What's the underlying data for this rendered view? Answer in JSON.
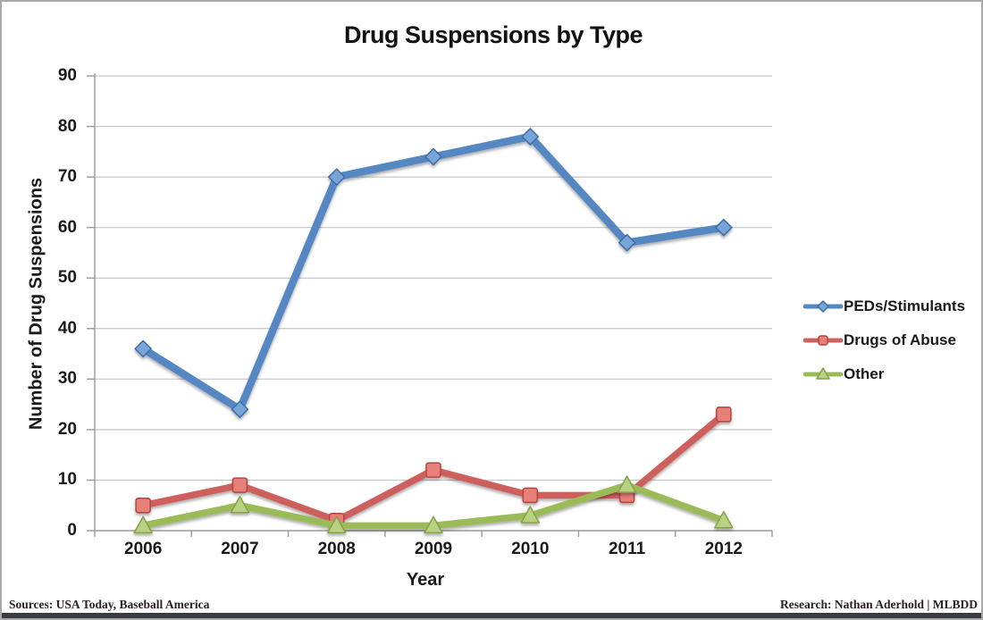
{
  "footer": {
    "left": "Sources: USA Today, Baseball America",
    "right": "Research: Nathan Aderhold | MLBDD"
  },
  "chart_data": {
    "type": "line",
    "title": "Drug Suspensions by Type",
    "xlabel": "Year",
    "ylabel": "Number of Drug Suspensions",
    "categories": [
      "2006",
      "2007",
      "2008",
      "2009",
      "2010",
      "2011",
      "2012"
    ],
    "ylim": [
      0,
      90
    ],
    "ytick_step": 10,
    "grid": true,
    "legend_position": "right-middle",
    "colors": {
      "gridline": "#c6c6c6",
      "axis": "#9a9a9a",
      "text": "#1a1a1a",
      "footer_text": "#2b2222",
      "footer_bar": "#3a3a42",
      "frame_border": "#a9a9a9",
      "background": "#ffffff"
    },
    "series": [
      {
        "name": "PEDs/Stimulants",
        "marker": "diamond",
        "color": "#5587C3",
        "marker_fill": "#78A5D7",
        "marker_stroke": "#3E6DA5",
        "line_width": 8.5,
        "values": [
          36,
          24,
          70,
          74,
          78,
          57,
          60
        ]
      },
      {
        "name": "Drugs of Abuse",
        "marker": "square",
        "color": "#CD615C",
        "marker_fill": "#E68078",
        "marker_stroke": "#B24541",
        "line_width": 7.5,
        "values": [
          5,
          9,
          2,
          12,
          7,
          7,
          23
        ]
      },
      {
        "name": "Other",
        "marker": "triangle",
        "color": "#9BBB59",
        "marker_fill": "#B9D282",
        "marker_stroke": "#85A149",
        "line_width": 7.5,
        "values": [
          1,
          5,
          1,
          1,
          3,
          9,
          2
        ]
      }
    ]
  }
}
